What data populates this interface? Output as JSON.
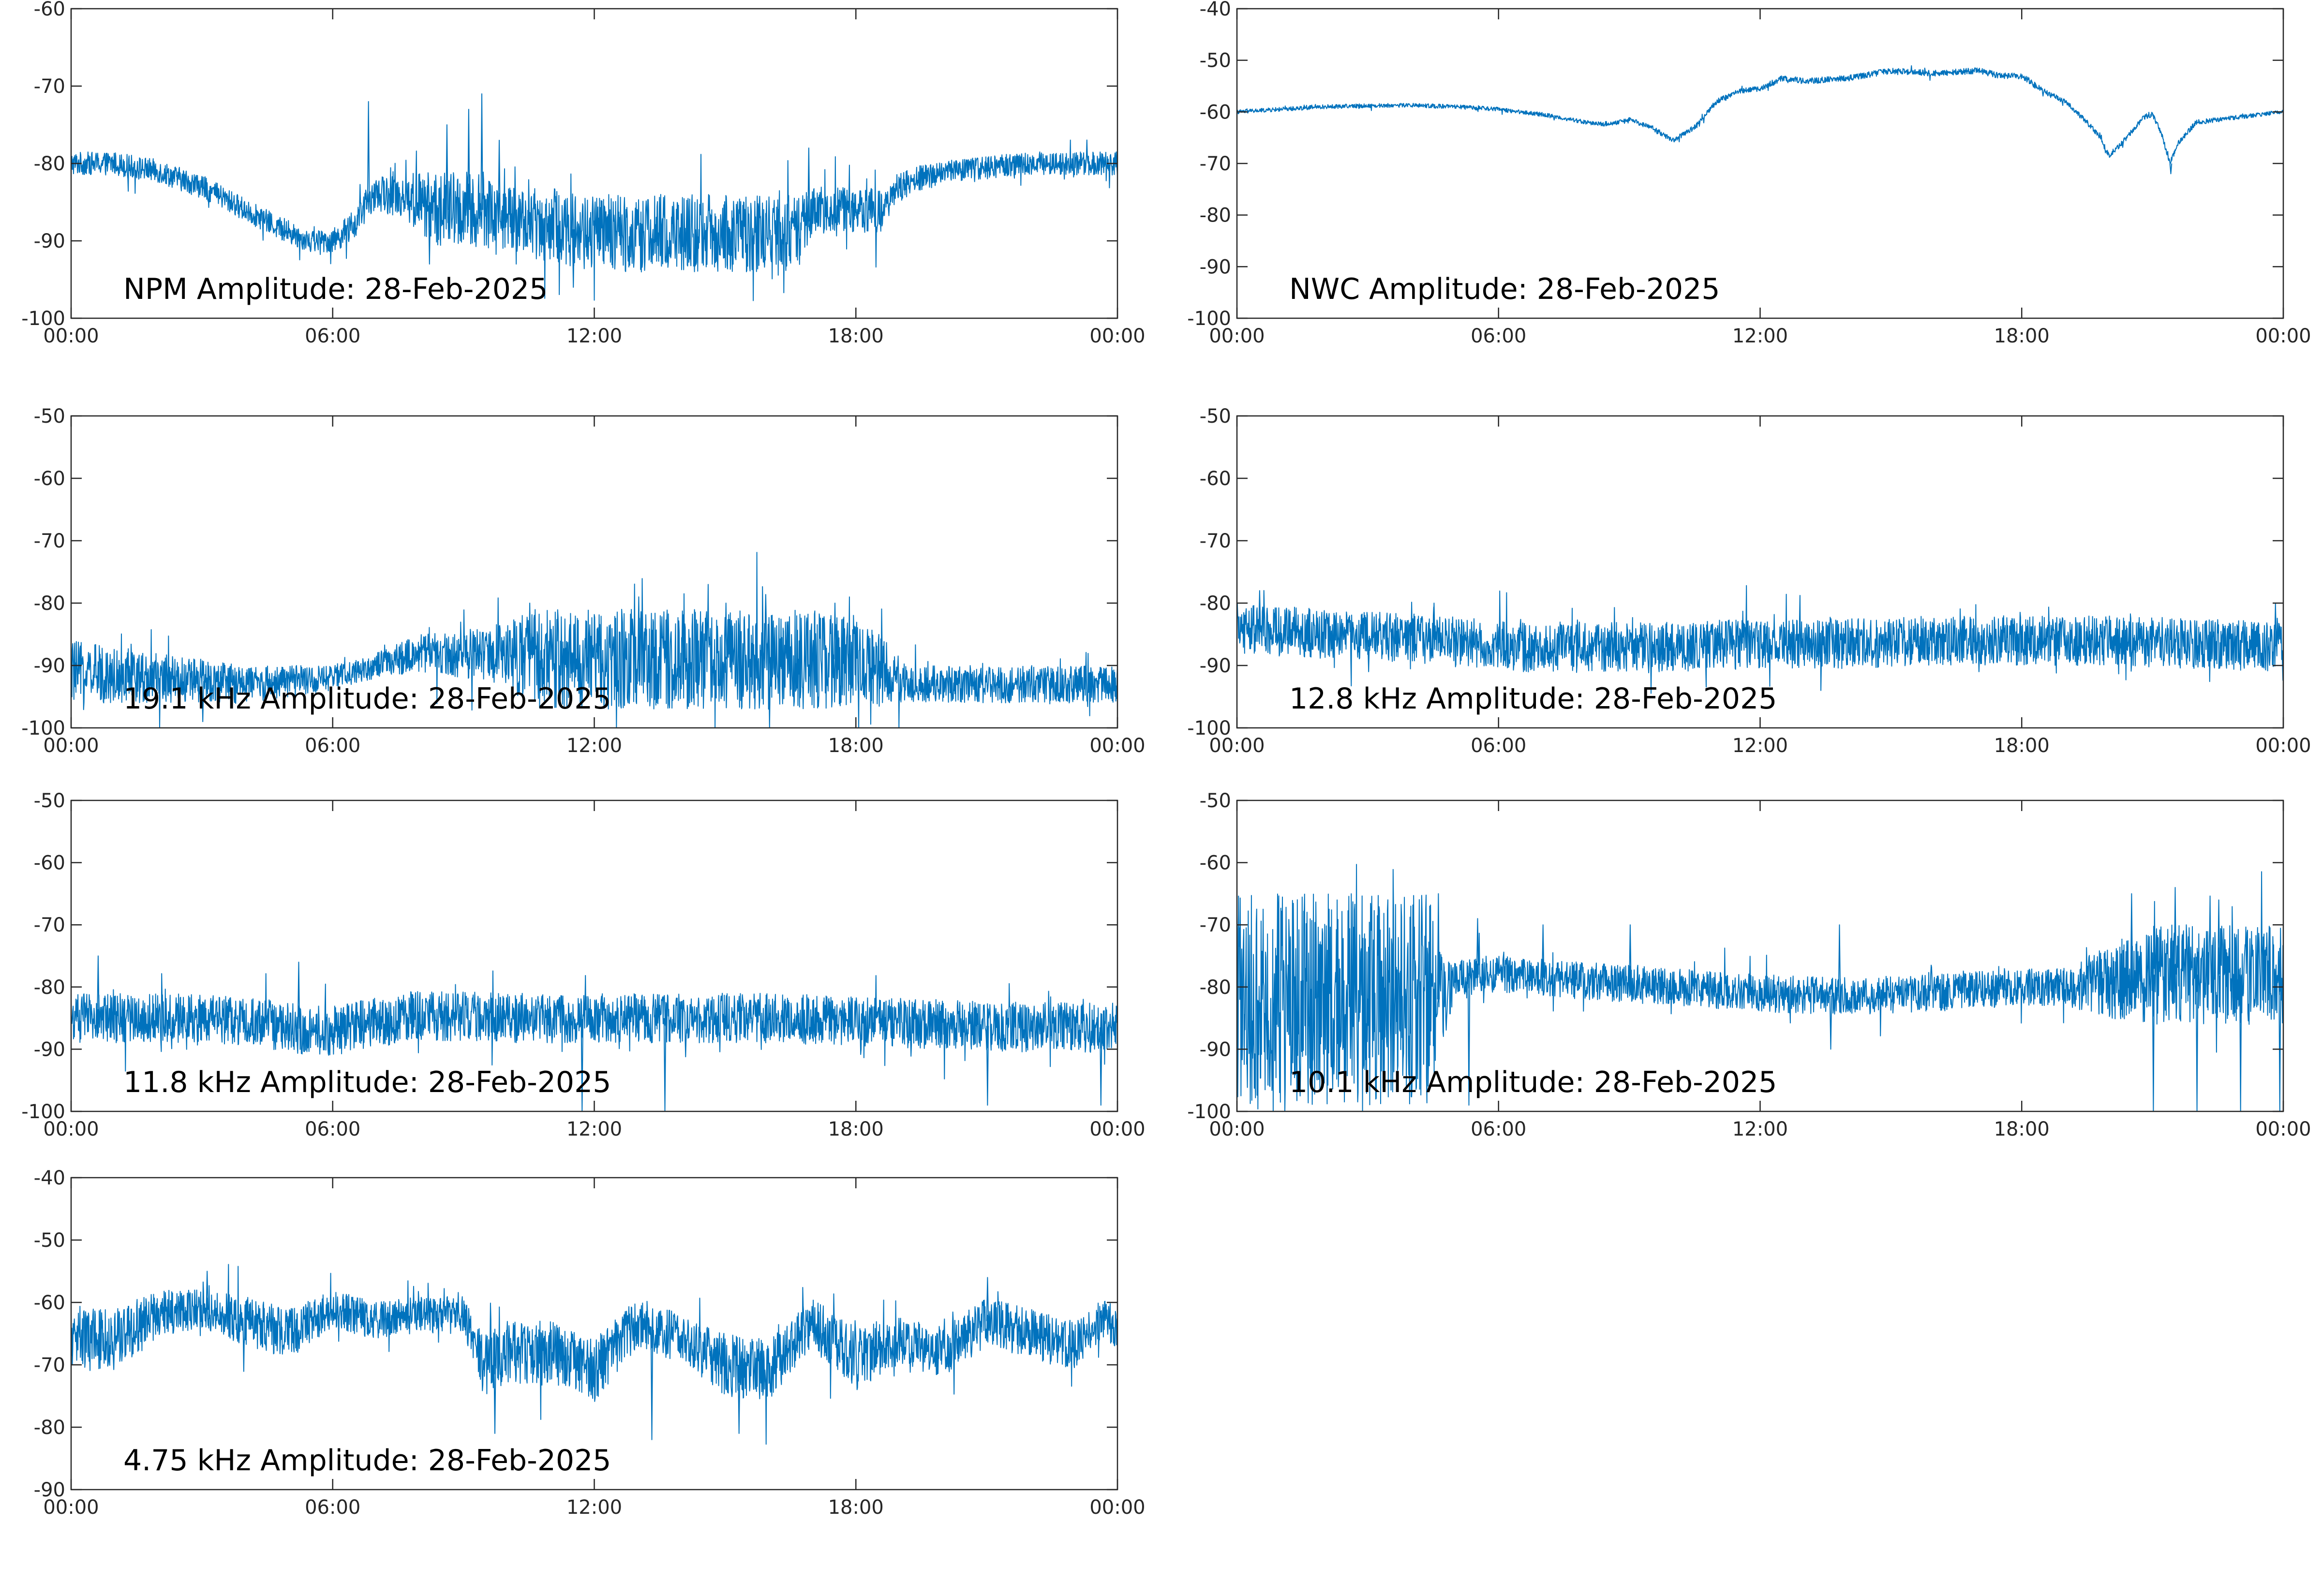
{
  "figure": {
    "line_color": "#0072BD"
  },
  "chart_data": [
    {
      "type": "line",
      "id": "npm",
      "title": "NPM Amplitude: 28-Feb-2025",
      "ylim": [
        -100,
        -60
      ],
      "yticks": [
        -100,
        -90,
        -80,
        -70,
        -60
      ],
      "ytick_labels": [
        "-100",
        "-90",
        "-80",
        "-70",
        "-60"
      ],
      "xlim": [
        0,
        24
      ],
      "xticks": [
        0,
        6,
        12,
        18,
        24
      ],
      "xtick_labels": [
        "00:00",
        "06:00",
        "12:00",
        "18:00",
        "00:00"
      ],
      "grid": false,
      "series": [
        {
          "x_hours": [
            0,
            1,
            2,
            3,
            4,
            5,
            5.5,
            6,
            6.5,
            6.8,
            7,
            7.5,
            8,
            8.5,
            9,
            9.5,
            10,
            11,
            12,
            13,
            14,
            15,
            16,
            16.8,
            17,
            18,
            18.5,
            19,
            20,
            21,
            22,
            23,
            24
          ],
          "y_center": [
            -80,
            -80,
            -81,
            -83,
            -86,
            -89,
            -90,
            -90,
            -88,
            -85,
            -84,
            -84,
            -85,
            -86,
            -86,
            -86,
            -87,
            -88,
            -89,
            -89,
            -89,
            -89,
            -89,
            -89,
            -86,
            -86,
            -86,
            -83,
            -81,
            -80.5,
            -80,
            -80,
            -80
          ],
          "noise_band": [
            1.5,
            1.5,
            1.5,
            1.5,
            1.5,
            1.5,
            1.5,
            1.5,
            2,
            2,
            2,
            3,
            4,
            5,
            5,
            5,
            4,
            5,
            5,
            5,
            5,
            5,
            5,
            5,
            3,
            3,
            3,
            2,
            1.5,
            1.5,
            1.5,
            1.5,
            1.5
          ],
          "spikes": [
            [
              6.8,
              -72
            ],
            [
              8.6,
              -75
            ],
            [
              9.1,
              -73
            ],
            [
              9.4,
              -71
            ],
            [
              9.8,
              -77
            ],
            [
              16.9,
              -78
            ],
            [
              8.2,
              -93
            ],
            [
              11.5,
              -96
            ]
          ]
        }
      ]
    },
    {
      "type": "line",
      "id": "nwc",
      "title": "NWC Amplitude: 28-Feb-2025",
      "ylim": [
        -100,
        -40
      ],
      "yticks": [
        -100,
        -90,
        -80,
        -70,
        -60,
        -50,
        -40
      ],
      "ytick_labels": [
        "-100",
        "-90",
        "-80",
        "-70",
        "-60",
        "-50",
        "-40"
      ],
      "xlim": [
        0,
        24
      ],
      "xticks": [
        0,
        6,
        12,
        18,
        24
      ],
      "xtick_labels": [
        "00:00",
        "06:00",
        "12:00",
        "18:00",
        "00:00"
      ],
      "grid": false,
      "series": [
        {
          "x_hours": [
            0,
            1,
            2,
            3,
            4,
            5,
            6,
            7,
            8,
            8.5,
            9,
            9.5,
            10,
            10.5,
            11,
            11.5,
            12,
            12.5,
            13,
            14,
            15,
            16,
            17,
            17.5,
            18,
            18.5,
            19,
            19.5,
            19.8,
            20,
            20.3,
            20.8,
            21,
            21.2,
            21.4,
            21.6,
            22,
            23,
            24
          ],
          "y_center": [
            -60,
            -59.5,
            -59,
            -58.8,
            -58.7,
            -59,
            -59.5,
            -60.5,
            -62,
            -62.5,
            -61.5,
            -63,
            -65.5,
            -63,
            -58,
            -56,
            -55.5,
            -53.5,
            -54,
            -53.5,
            -52,
            -52.5,
            -52,
            -53,
            -53,
            -56,
            -58,
            -62,
            -65,
            -68.5,
            -66,
            -61,
            -60.5,
            -64,
            -70,
            -66,
            -62,
            -61,
            -60
          ],
          "noise_band": [
            0.4,
            0.4,
            0.4,
            0.4,
            0.4,
            0.4,
            0.4,
            0.4,
            0.4,
            0.4,
            0.4,
            0.5,
            0.5,
            0.5,
            0.5,
            0.5,
            0.5,
            0.6,
            0.6,
            0.6,
            0.6,
            0.6,
            0.6,
            0.6,
            0.6,
            0.6,
            0.5,
            0.5,
            0.5,
            0.5,
            0.5,
            0.5,
            0.5,
            0.5,
            0.5,
            0.5,
            0.5,
            0.4,
            0.4
          ],
          "spikes": [
            [
              21.4,
              -72
            ]
          ]
        }
      ]
    },
    {
      "type": "line",
      "id": "f19_1",
      "title": "19.1 kHz Amplitude: 28-Feb-2025",
      "ylim": [
        -100,
        -50
      ],
      "yticks": [
        -100,
        -90,
        -80,
        -70,
        -60,
        -50
      ],
      "ytick_labels": [
        "-100",
        "-90",
        "-80",
        "-70",
        "-60",
        "-50"
      ],
      "xlim": [
        0,
        24
      ],
      "xticks": [
        0,
        6,
        12,
        18,
        24
      ],
      "xtick_labels": [
        "00:00",
        "06:00",
        "12:00",
        "18:00",
        "00:00"
      ],
      "grid": false,
      "series": [
        {
          "x_hours": [
            0,
            2,
            4,
            6,
            7,
            8,
            9,
            10,
            10.5,
            12,
            14,
            16,
            18,
            19.2,
            20,
            22,
            24
          ],
          "y_center": [
            -91,
            -92,
            -93,
            -92,
            -90,
            -88,
            -88,
            -88,
            -89,
            -89,
            -89,
            -89,
            -89,
            -93,
            -93,
            -93,
            -93
          ],
          "noise_band": [
            5,
            4,
            3,
            2,
            2,
            3,
            4,
            5,
            8,
            8,
            8,
            8,
            8,
            3,
            3,
            3,
            3
          ],
          "spikes": [
            [
              10.5,
              -80
            ],
            [
              13,
              -79
            ],
            [
              15,
              -80
            ],
            [
              17.5,
              -80
            ],
            [
              3,
              -99
            ],
            [
              16,
              -100
            ]
          ]
        }
      ]
    },
    {
      "type": "line",
      "id": "f12_8",
      "title": "12.8 kHz Amplitude: 28-Feb-2025",
      "ylim": [
        -100,
        -50
      ],
      "yticks": [
        -100,
        -90,
        -80,
        -70,
        -60,
        -50
      ],
      "ytick_labels": [
        "-100",
        "-90",
        "-80",
        "-70",
        "-60",
        "-50"
      ],
      "xlim": [
        0,
        24
      ],
      "xticks": [
        0,
        6,
        12,
        18,
        24
      ],
      "xtick_labels": [
        "00:00",
        "06:00",
        "12:00",
        "18:00",
        "00:00"
      ],
      "grid": false,
      "series": [
        {
          "x_hours": [
            0,
            2,
            4,
            6,
            8,
            10,
            12,
            14,
            16,
            18,
            20,
            22,
            24
          ],
          "y_center": [
            -84,
            -85,
            -85.5,
            -87,
            -87,
            -87,
            -86.5,
            -86.5,
            -86,
            -86,
            -86,
            -86.5,
            -87
          ],
          "noise_band": [
            4,
            4,
            4,
            4,
            4,
            4,
            4,
            4,
            4,
            4,
            4,
            4,
            4
          ],
          "spikes": [
            [
              0.5,
              -78
            ],
            [
              4.5,
              -80
            ],
            [
              23.8,
              -80
            ],
            [
              3,
              -91
            ],
            [
              17,
              -91
            ]
          ]
        }
      ]
    },
    {
      "type": "line",
      "id": "f11_8",
      "title": "11.8 kHz Amplitude: 28-Feb-2025",
      "ylim": [
        -100,
        -50
      ],
      "yticks": [
        -100,
        -90,
        -80,
        -70,
        -60,
        -50
      ],
      "ytick_labels": [
        "-100",
        "-90",
        "-80",
        "-70",
        "-60",
        "-50"
      ],
      "xlim": [
        0,
        24
      ],
      "xticks": [
        0,
        6,
        12,
        18,
        24
      ],
      "xtick_labels": [
        "00:00",
        "06:00",
        "12:00",
        "18:00",
        "00:00"
      ],
      "grid": false,
      "series": [
        {
          "x_hours": [
            0,
            2,
            4,
            5.5,
            6,
            8,
            10,
            12,
            14,
            16,
            18,
            20,
            22,
            24
          ],
          "y_center": [
            -85,
            -85,
            -85.5,
            -87,
            -87,
            -84.5,
            -85,
            -85,
            -85,
            -85,
            -85.5,
            -86,
            -86.5,
            -86.5
          ],
          "noise_band": [
            4,
            4,
            4,
            4,
            4,
            4,
            4,
            4,
            4,
            4,
            4,
            4,
            4,
            4
          ],
          "spikes": [
            [
              5.2,
              -76
            ],
            [
              0.6,
              -75
            ],
            [
              11.7,
              -100
            ],
            [
              13.6,
              -100
            ],
            [
              21,
              -99
            ],
            [
              23.6,
              -99
            ]
          ]
        }
      ]
    },
    {
      "type": "line",
      "id": "f10_1",
      "title": "10.1 kHz Amplitude: 28-Feb-2025",
      "ylim": [
        -100,
        -50
      ],
      "yticks": [
        -100,
        -90,
        -80,
        -70,
        -60,
        -50
      ],
      "ytick_labels": [
        "-100",
        "-90",
        "-80",
        "-70",
        "-60",
        "-50"
      ],
      "xlim": [
        0,
        24
      ],
      "xticks": [
        0,
        6,
        12,
        18,
        24
      ],
      "xtick_labels": [
        "00:00",
        "06:00",
        "12:00",
        "18:00",
        "00:00"
      ],
      "grid": false,
      "series": [
        {
          "x_hours": [
            0,
            1,
            2,
            3,
            4,
            4.4,
            4.6,
            5,
            5.5,
            6,
            8,
            10,
            12,
            14,
            16,
            18,
            19,
            20,
            21,
            22,
            23,
            24
          ],
          "y_center": [
            -82,
            -82,
            -82,
            -82,
            -82,
            -82,
            -82,
            -79,
            -78,
            -78,
            -79,
            -80,
            -81,
            -81.5,
            -81,
            -80,
            -80,
            -79,
            -78,
            -78,
            -78,
            -78
          ],
          "noise_band": [
            17,
            17,
            17,
            17,
            17,
            17,
            10,
            3,
            3,
            3,
            3,
            3,
            3,
            3,
            3,
            3,
            3,
            6,
            8,
            8,
            8,
            8
          ],
          "spikes": [
            [
              4.6,
              -65
            ],
            [
              5.5,
              -69
            ],
            [
              7,
              -70
            ],
            [
              9,
              -70
            ],
            [
              13.8,
              -70
            ],
            [
              20.5,
              -65
            ],
            [
              21.5,
              -64
            ],
            [
              22.5,
              -66
            ],
            [
              5.3,
              -99
            ],
            [
              13.6,
              -90
            ],
            [
              21,
              -100
            ],
            [
              22,
              -100
            ],
            [
              23,
              -100
            ],
            [
              23.9,
              -100
            ]
          ]
        }
      ]
    },
    {
      "type": "line",
      "id": "f4_75",
      "title": "4.75 kHz Amplitude: 28-Feb-2025",
      "ylim": [
        -90,
        -40
      ],
      "yticks": [
        -90,
        -80,
        -70,
        -60,
        -50,
        -40
      ],
      "ytick_labels": [
        "-90",
        "-80",
        "-70",
        "-60",
        "-50",
        "-40"
      ],
      "xlim": [
        0,
        24
      ],
      "xticks": [
        0,
        6,
        12,
        18,
        24
      ],
      "xtick_labels": [
        "00:00",
        "06:00",
        "12:00",
        "18:00",
        "00:00"
      ],
      "grid": false,
      "series": [
        {
          "x_hours": [
            0,
            1,
            2,
            3,
            4,
            5,
            6,
            7,
            8,
            9,
            9.5,
            10,
            11,
            12,
            13,
            14,
            15,
            16,
            17,
            18,
            19,
            20,
            21,
            22,
            23,
            23.8,
            24
          ],
          "y_center": [
            -66,
            -66,
            -62,
            -61,
            -63,
            -65,
            -61,
            -63,
            -62,
            -62,
            -70,
            -68,
            -68,
            -71,
            -63,
            -66,
            -70,
            -71,
            -63,
            -69,
            -66,
            -68,
            -63,
            -65,
            -67,
            -62,
            -66
          ],
          "noise_band": [
            5,
            5,
            4,
            3,
            4,
            4,
            3,
            3,
            3,
            3,
            5,
            5,
            5,
            5,
            4,
            4,
            5,
            5,
            4,
            5,
            4,
            4,
            4,
            4,
            4,
            3,
            4
          ],
          "spikes": [
            [
              3.1,
              -55
            ],
            [
              9.7,
              -81
            ],
            [
              13.3,
              -82
            ],
            [
              15.3,
              -81
            ],
            [
              21,
              -56
            ]
          ]
        }
      ]
    }
  ]
}
